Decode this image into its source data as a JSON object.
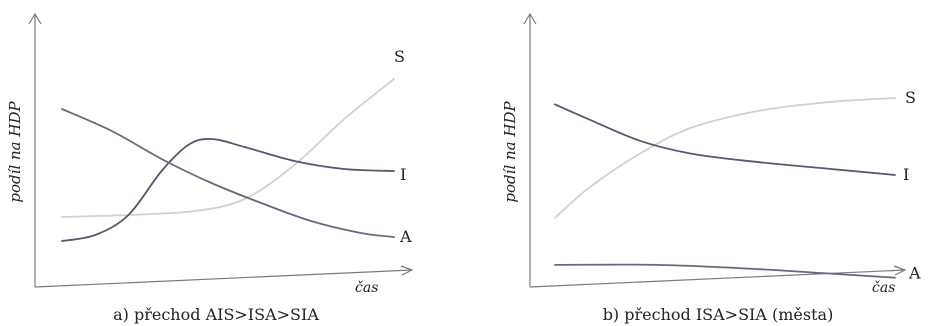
{
  "chart_data": [
    {
      "type": "line",
      "caption": "a) přechod AIS>ISA>SIA",
      "ylabel": "podíl na HDP",
      "xlabel": "čas",
      "series": [
        {
          "name": "S",
          "color": "#d0d0d6",
          "points": [
            [
              0.0,
              0.29
            ],
            [
              0.2,
              0.3
            ],
            [
              0.4,
              0.32
            ],
            [
              0.55,
              0.38
            ],
            [
              0.7,
              0.55
            ],
            [
              0.85,
              0.78
            ],
            [
              1.0,
              0.98
            ]
          ]
        },
        {
          "name": "I",
          "color": "#5c5672",
          "points": [
            [
              0.0,
              0.17
            ],
            [
              0.1,
              0.2
            ],
            [
              0.2,
              0.3
            ],
            [
              0.3,
              0.52
            ],
            [
              0.38,
              0.65
            ],
            [
              0.45,
              0.68
            ],
            [
              0.55,
              0.64
            ],
            [
              0.7,
              0.57
            ],
            [
              0.85,
              0.53
            ],
            [
              1.0,
              0.52
            ]
          ]
        },
        {
          "name": "A",
          "color": "#6e6680",
          "points": [
            [
              0.0,
              0.83
            ],
            [
              0.15,
              0.72
            ],
            [
              0.3,
              0.58
            ],
            [
              0.45,
              0.46
            ],
            [
              0.6,
              0.36
            ],
            [
              0.75,
              0.27
            ],
            [
              0.9,
              0.21
            ],
            [
              1.0,
              0.19
            ]
          ]
        }
      ]
    },
    {
      "type": "line",
      "caption": "b) přechod ISA>SIA (města)",
      "ylabel": "podíl na HDP",
      "xlabel": "čas",
      "series": [
        {
          "name": "S",
          "color": "#d0d0d6",
          "points": [
            [
              0.0,
              0.3
            ],
            [
              0.1,
              0.44
            ],
            [
              0.25,
              0.6
            ],
            [
              0.4,
              0.72
            ],
            [
              0.6,
              0.8
            ],
            [
              0.8,
              0.84
            ],
            [
              1.0,
              0.86
            ]
          ]
        },
        {
          "name": "I",
          "color": "#5c5672",
          "points": [
            [
              0.0,
              0.83
            ],
            [
              0.1,
              0.76
            ],
            [
              0.25,
              0.66
            ],
            [
              0.4,
              0.6
            ],
            [
              0.6,
              0.56
            ],
            [
              0.8,
              0.53
            ],
            [
              1.0,
              0.5
            ]
          ]
        },
        {
          "name": "A",
          "color": "#6e6680",
          "points": [
            [
              0.0,
              0.08
            ],
            [
              0.3,
              0.08
            ],
            [
              0.6,
              0.06
            ],
            [
              0.8,
              0.04
            ],
            [
              1.0,
              0.02
            ]
          ]
        }
      ]
    }
  ]
}
